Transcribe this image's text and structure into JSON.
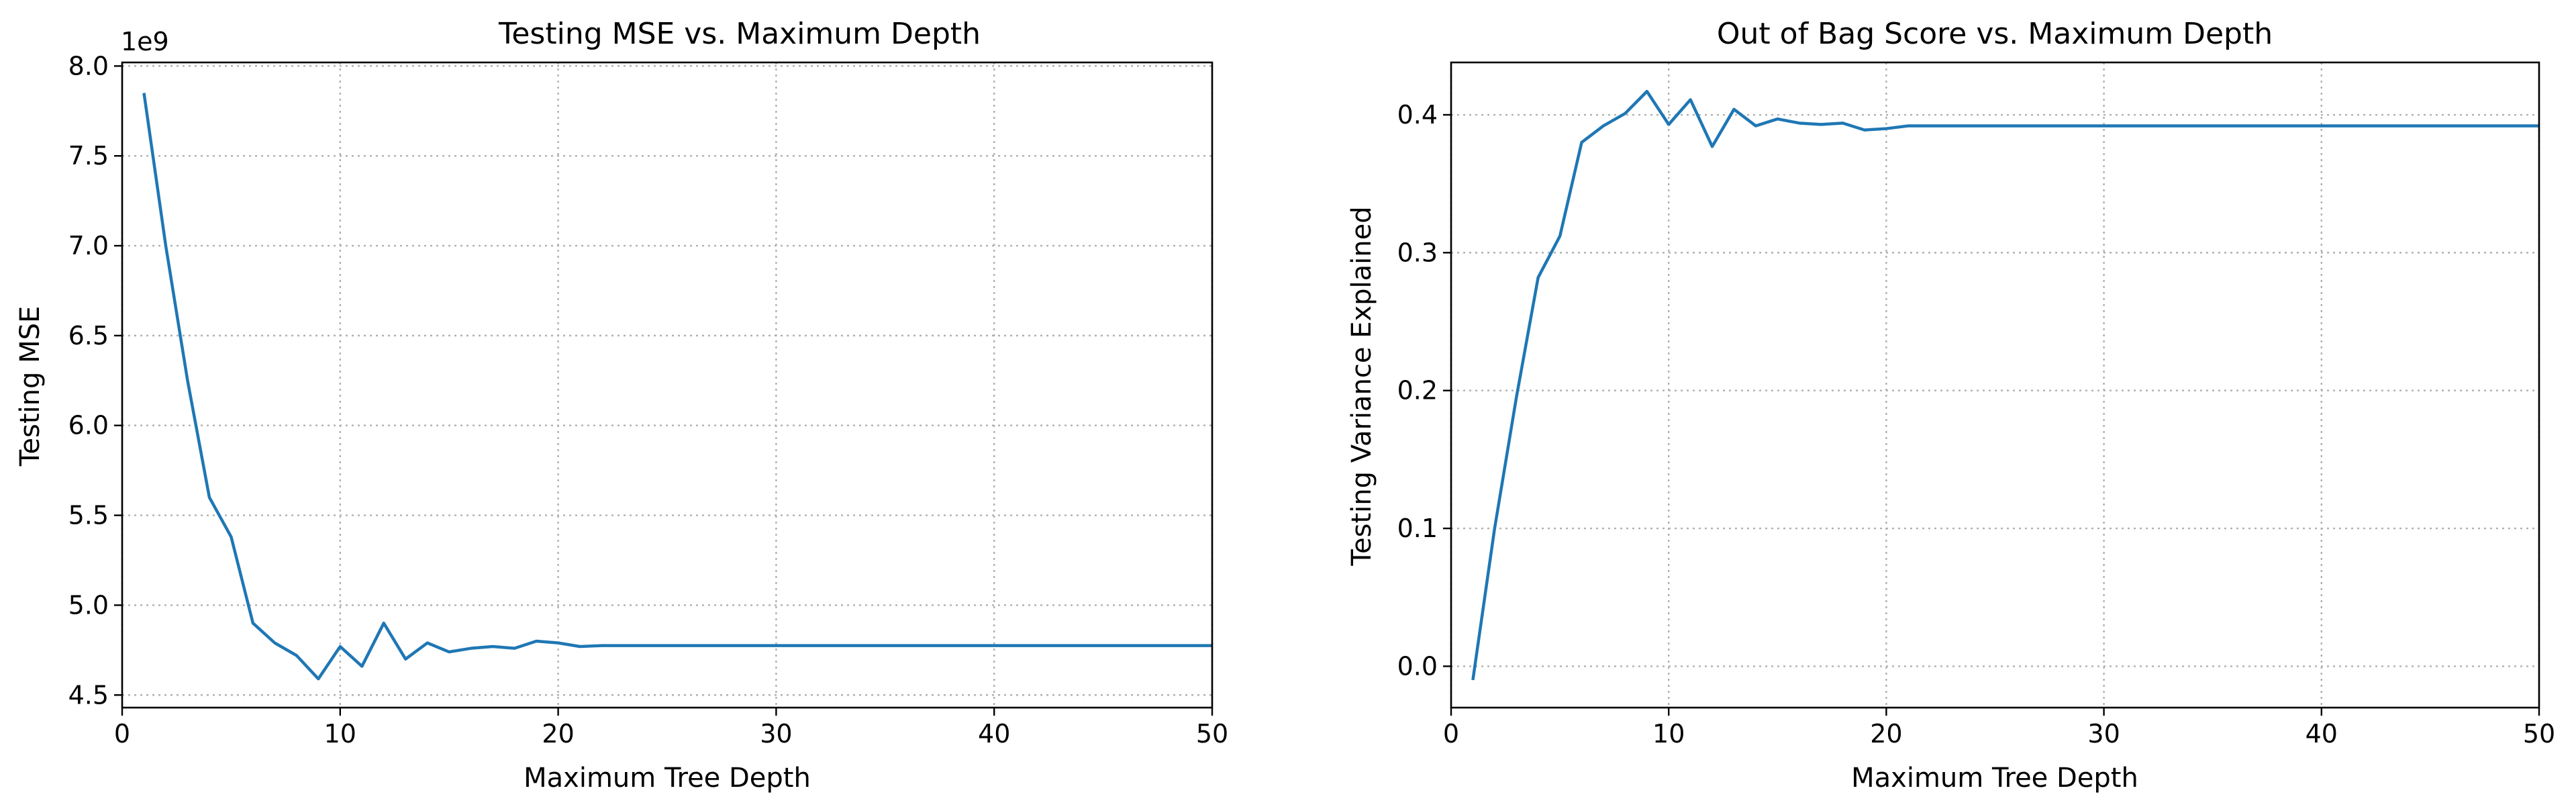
{
  "chart_data": [
    {
      "type": "line",
      "title": "Testing MSE vs. Maximum Depth",
      "xlabel": "Maximum Tree Depth",
      "ylabel": "Testing MSE",
      "y_offset_text": "1e9",
      "xlim": [
        0,
        50
      ],
      "ylim": [
        4.43,
        8.02
      ],
      "xticks": [
        0,
        10,
        20,
        30,
        40,
        50
      ],
      "xtick_labels": [
        "0",
        "10",
        "20",
        "30",
        "40",
        "50"
      ],
      "yticks": [
        4.5,
        5.0,
        5.5,
        6.0,
        6.5,
        7.0,
        7.5,
        8.0
      ],
      "ytick_labels": [
        "4.5",
        "5.0",
        "5.5",
        "6.0",
        "6.5",
        "7.0",
        "7.5",
        "8.0"
      ],
      "grid": true,
      "color": "#1f77b4",
      "series": [
        {
          "x": [
            1,
            2,
            3,
            4,
            5,
            6,
            7,
            8,
            9,
            10,
            11,
            12,
            13,
            14,
            15,
            16,
            17,
            18,
            19,
            20,
            21,
            22,
            23,
            24,
            25,
            26,
            27,
            28,
            29,
            30,
            31,
            32,
            33,
            34,
            35,
            36,
            37,
            38,
            39,
            40,
            41,
            42,
            43,
            44,
            45,
            46,
            47,
            48,
            49,
            50
          ],
          "y": [
            7.85,
            7.0,
            6.25,
            5.6,
            5.38,
            4.9,
            4.79,
            4.72,
            4.59,
            4.77,
            4.66,
            4.9,
            4.7,
            4.79,
            4.74,
            4.76,
            4.77,
            4.76,
            4.8,
            4.79,
            4.77,
            4.775,
            4.775,
            4.775,
            4.775,
            4.775,
            4.775,
            4.775,
            4.775,
            4.775,
            4.775,
            4.775,
            4.775,
            4.775,
            4.775,
            4.775,
            4.775,
            4.775,
            4.775,
            4.775,
            4.775,
            4.775,
            4.775,
            4.775,
            4.775,
            4.775,
            4.775,
            4.775,
            4.775,
            4.775
          ]
        }
      ]
    },
    {
      "type": "line",
      "title": "Out of Bag Score vs. Maximum Depth",
      "xlabel": "Maximum Tree Depth",
      "ylabel": "Testing Variance Explained",
      "xlim": [
        0,
        50
      ],
      "ylim": [
        -0.03,
        0.438
      ],
      "xticks": [
        0,
        10,
        20,
        30,
        40,
        50
      ],
      "xtick_labels": [
        "0",
        "10",
        "20",
        "30",
        "40",
        "50"
      ],
      "yticks": [
        0.0,
        0.1,
        0.2,
        0.3,
        0.4
      ],
      "ytick_labels": [
        "0.0",
        "0.1",
        "0.2",
        "0.3",
        "0.4"
      ],
      "grid": true,
      "color": "#1f77b4",
      "series": [
        {
          "x": [
            1,
            2,
            3,
            4,
            5,
            6,
            7,
            8,
            9,
            10,
            11,
            12,
            13,
            14,
            15,
            16,
            17,
            18,
            19,
            20,
            21,
            22,
            23,
            24,
            25,
            26,
            27,
            28,
            29,
            30,
            31,
            32,
            33,
            34,
            35,
            36,
            37,
            38,
            39,
            40,
            41,
            42,
            43,
            44,
            45,
            46,
            47,
            48,
            49,
            50
          ],
          "y": [
            -0.01,
            0.1,
            0.195,
            0.282,
            0.312,
            0.38,
            0.392,
            0.401,
            0.417,
            0.393,
            0.411,
            0.377,
            0.404,
            0.392,
            0.397,
            0.394,
            0.393,
            0.394,
            0.389,
            0.39,
            0.392,
            0.392,
            0.392,
            0.392,
            0.392,
            0.392,
            0.392,
            0.392,
            0.392,
            0.392,
            0.392,
            0.392,
            0.392,
            0.392,
            0.392,
            0.392,
            0.392,
            0.392,
            0.392,
            0.392,
            0.392,
            0.392,
            0.392,
            0.392,
            0.392,
            0.392,
            0.392,
            0.392,
            0.392,
            0.392
          ]
        }
      ]
    }
  ]
}
